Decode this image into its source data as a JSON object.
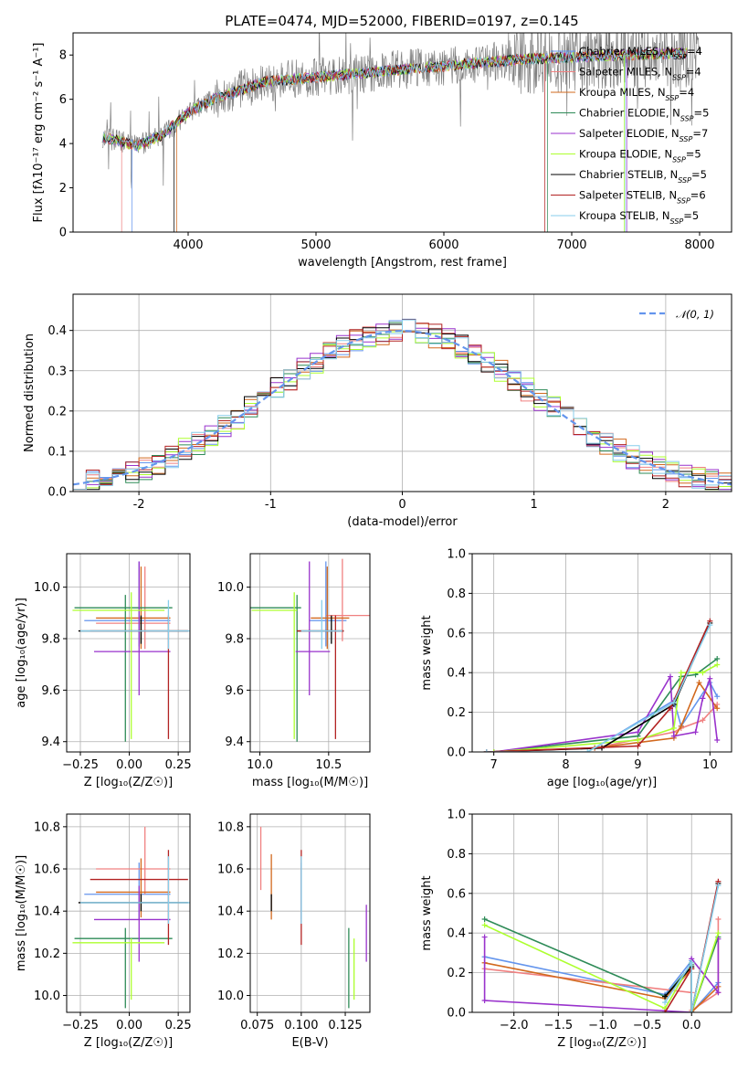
{
  "figure_title": "PLATE=0474, MJD=52000, FIBERID=0197, z=0.145",
  "models": [
    {
      "name": "Chabrier MILES",
      "n": "4",
      "color": "#6495ed"
    },
    {
      "name": "Salpeter MILES",
      "n": "4",
      "color": "#f08080"
    },
    {
      "name": "Kroupa MILES",
      "n": "4",
      "color": "#d2691e"
    },
    {
      "name": "Chabrier ELODIE",
      "n": "5",
      "color": "#2e8b57"
    },
    {
      "name": "Salpeter ELODIE",
      "n": "7",
      "color": "#9932cc"
    },
    {
      "name": "Kroupa ELODIE",
      "n": "5",
      "color": "#adff2f"
    },
    {
      "name": "Chabrier STELIB",
      "n": "5",
      "color": "#000000"
    },
    {
      "name": "Salpeter STELIB",
      "n": "6",
      "color": "#b22222"
    },
    {
      "name": "Kroupa STELIB",
      "n": "5",
      "color": "#87ceeb"
    }
  ],
  "chart_data": [
    {
      "id": "spectrum",
      "type": "line",
      "xlabel": "wavelength [Angstrom, rest frame]",
      "ylabel": "Flux [fλ10⁻¹⁷ erg cm⁻² s⁻¹ A⁻¹]",
      "xlim": [
        3100,
        8250
      ],
      "ylim": [
        0,
        9
      ],
      "xticks": [
        4000,
        5000,
        6000,
        7000,
        8000
      ],
      "yticks": [
        0,
        2,
        4,
        6,
        8
      ],
      "grid": false,
      "legend": "right",
      "data_color": "#808080",
      "data_xrange": [
        3330,
        8000
      ],
      "continuum": {
        "x": [
          3330,
          3600,
          3800,
          4000,
          4200,
          4600,
          5000,
          5400,
          5800,
          6200,
          6600,
          7000,
          7400,
          8000
        ],
        "y": [
          4.3,
          3.9,
          4.4,
          5.4,
          6.0,
          6.8,
          7.0,
          7.2,
          7.4,
          7.6,
          7.8,
          7.9,
          8.0,
          8.1
        ]
      },
      "model_xrange": [
        3330,
        7900
      ],
      "model_drop_x": [
        3560,
        3480,
        3910,
        6810,
        7430,
        7410,
        3890,
        6790,
        7420
      ]
    },
    {
      "id": "residuals",
      "type": "bar",
      "xlabel": "(data-model)/error",
      "ylabel": "Normed distribution",
      "xlim": [
        -2.5,
        2.5
      ],
      "ylim": [
        0,
        0.49
      ],
      "xticks": [
        -2,
        -1,
        0,
        1,
        2
      ],
      "yticks": [
        0.0,
        0.1,
        0.2,
        0.3,
        0.4
      ],
      "grid": true,
      "legend": "top-right",
      "legend_label": "𝒩(0, 1)",
      "bin_width": 0.1,
      "bins_from": -2.5
    },
    {
      "id": "age-vs-Z",
      "type": "scatter",
      "xlabel": "Z [log₁₀(Z/Z☉)]",
      "ylabel": "age  [log₁₀(age/yr)]",
      "xlim": [
        -0.32,
        0.31
      ],
      "ylim": [
        9.36,
        10.13
      ],
      "xticks": [
        -0.25,
        0.0,
        0.25
      ],
      "xticklabels": [
        "−0.25",
        "0.00",
        "0.25"
      ],
      "yticks": [
        9.4,
        9.6,
        9.8,
        10.0
      ],
      "grid": true,
      "points": [
        {
          "x": 0.05,
          "xerr": [
            0.28,
            0.16
          ],
          "y": 9.87,
          "yerr": [
            0.1,
            0.23
          ]
        },
        {
          "x": 0.08,
          "xerr": [
            0.25,
            0.13
          ],
          "y": 9.86,
          "yerr": [
            0.1,
            0.22
          ]
        },
        {
          "x": 0.06,
          "xerr": [
            0.23,
            0.15
          ],
          "y": 9.88,
          "yerr": [
            0.12,
            0.2
          ]
        },
        {
          "x": -0.02,
          "xerr": [
            0.26,
            0.24
          ],
          "y": 9.92,
          "yerr": [
            0.52,
            0.05
          ]
        },
        {
          "x": 0.05,
          "xerr": [
            0.23,
            0.16
          ],
          "y": 9.75,
          "yerr": [
            0.17,
            0.35
          ]
        },
        {
          "x": 0.01,
          "xerr": [
            0.3,
            0.17
          ],
          "y": 9.91,
          "yerr": [
            0.5,
            0.07
          ]
        },
        {
          "x": 0.06,
          "xerr": [
            0.32,
            0.24
          ],
          "y": 9.83,
          "yerr": [
            0.05,
            0.06
          ]
        },
        {
          "x": 0.2,
          "xerr": [
            0.4,
            0.1
          ],
          "y": 9.83,
          "yerr": [
            0.42,
            0.06
          ]
        },
        {
          "x": 0.2,
          "xerr": [
            0.45,
            0.11
          ],
          "y": 9.83,
          "yerr": [
            0.07,
            0.12
          ]
        }
      ]
    },
    {
      "id": "age-vs-mass",
      "type": "scatter",
      "xlabel": "mass [log₁₀(M/M☉)]",
      "ylabel": "",
      "xlim": [
        9.93,
        10.8
      ],
      "ylim": [
        9.36,
        10.13
      ],
      "xticks": [
        10.0,
        10.5
      ],
      "xticklabels": [
        "10.0",
        "10.5"
      ],
      "yticks": [
        9.4,
        9.6,
        9.8,
        10.0
      ],
      "grid": true,
      "points": [
        {
          "x": 10.48,
          "xerr": [
            0.12,
            0.15
          ],
          "y": 9.87,
          "yerr": [
            0.1,
            0.23
          ]
        },
        {
          "x": 10.6,
          "xerr": [
            0.12,
            0.2
          ],
          "y": 9.89,
          "yerr": [
            0.1,
            0.22
          ]
        },
        {
          "x": 10.49,
          "xerr": [
            0.12,
            0.16
          ],
          "y": 9.88,
          "yerr": [
            0.12,
            0.2
          ]
        },
        {
          "x": 10.27,
          "xerr": [
            0.35,
            0.03
          ],
          "y": 9.92,
          "yerr": [
            0.52,
            0.05
          ]
        },
        {
          "x": 10.36,
          "xerr": [
            0.1,
            0.15
          ],
          "y": 9.75,
          "yerr": [
            0.17,
            0.35
          ]
        },
        {
          "x": 10.25,
          "xerr": [
            0.31,
            0.02
          ],
          "y": 9.91,
          "yerr": [
            0.5,
            0.07
          ]
        },
        {
          "x": 10.52,
          "xerr": [
            0.25,
            0.09
          ],
          "y": 9.83,
          "yerr": [
            0.05,
            0.06
          ]
        },
        {
          "x": 10.55,
          "xerr": [
            0.28,
            0.06
          ],
          "y": 9.83,
          "yerr": [
            0.42,
            0.06
          ]
        },
        {
          "x": 10.45,
          "xerr": [
            0.15,
            0.15
          ],
          "y": 9.83,
          "yerr": [
            0.07,
            0.12
          ]
        }
      ]
    },
    {
      "id": "sfh-age",
      "type": "line",
      "xlabel": "age  [log₁₀(age/yr)]",
      "ylabel": "mass weight",
      "xlim": [
        6.7,
        10.3
      ],
      "ylim": [
        0,
        1.0
      ],
      "xticks": [
        7,
        8,
        9,
        10
      ],
      "yticks": [
        0.0,
        0.2,
        0.4,
        0.6,
        0.8,
        1.0
      ],
      "grid": true,
      "series": [
        {
          "x": [
            6.9,
            8.4,
            9.5,
            9.6,
            10.0,
            10.1
          ],
          "y": [
            0.0,
            0.02,
            0.26,
            0.13,
            0.35,
            0.28
          ]
        },
        {
          "x": [
            6.9,
            8.4,
            9.5,
            9.6,
            9.9,
            10.1
          ],
          "y": [
            0.0,
            0.02,
            0.1,
            0.12,
            0.16,
            0.24
          ]
        },
        {
          "x": [
            6.9,
            8.4,
            9.5,
            9.6,
            9.85,
            10.1
          ],
          "y": [
            0.0,
            0.02,
            0.07,
            0.13,
            0.35,
            0.22
          ]
        },
        {
          "x": [
            7.0,
            9.0,
            9.6,
            9.8,
            10.1
          ],
          "y": [
            0.0,
            0.08,
            0.38,
            0.39,
            0.47
          ]
        },
        {
          "x": [
            7.0,
            9.0,
            9.45,
            9.5,
            9.8,
            9.9,
            10.0,
            10.1
          ],
          "y": [
            0.0,
            0.1,
            0.38,
            0.08,
            0.1,
            0.27,
            0.37,
            0.06
          ]
        },
        {
          "x": [
            7.0,
            9.0,
            9.5,
            9.6,
            9.9,
            10.1
          ],
          "y": [
            0.0,
            0.06,
            0.12,
            0.4,
            0.4,
            0.44
          ]
        },
        {
          "x": [
            6.9,
            8.5,
            9.5,
            10.0
          ],
          "y": [
            0.0,
            0.02,
            0.24,
            0.65
          ]
        },
        {
          "x": [
            6.9,
            9.0,
            9.45,
            10.0
          ],
          "y": [
            0.0,
            0.03,
            0.22,
            0.66
          ]
        },
        {
          "x": [
            6.9,
            8.3,
            9.5,
            10.0
          ],
          "y": [
            0.0,
            0.0,
            0.25,
            0.64
          ]
        }
      ]
    },
    {
      "id": "mass-vs-Z",
      "type": "scatter",
      "xlabel": "Z [log₁₀(Z/Z☉)]",
      "ylabel": "mass [log₁₀(M/M☉)]",
      "xlim": [
        -0.32,
        0.31
      ],
      "ylim": [
        9.92,
        10.86
      ],
      "xticks": [
        -0.25,
        0.0,
        0.25
      ],
      "xticklabels": [
        "−0.25",
        "0.00",
        "0.25"
      ],
      "yticks": [
        10.0,
        10.2,
        10.4,
        10.6,
        10.8
      ],
      "grid": true,
      "points": [
        {
          "x": 0.05,
          "xerr": [
            0.28,
            0.16
          ],
          "y": 10.48,
          "yerr": [
            0.12,
            0.15
          ]
        },
        {
          "x": 0.08,
          "xerr": [
            0.25,
            0.13
          ],
          "y": 10.6,
          "yerr": [
            0.12,
            0.2
          ]
        },
        {
          "x": 0.06,
          "xerr": [
            0.23,
            0.15
          ],
          "y": 10.49,
          "yerr": [
            0.12,
            0.16
          ]
        },
        {
          "x": -0.02,
          "xerr": [
            0.26,
            0.24
          ],
          "y": 10.27,
          "yerr": [
            0.33,
            0.05
          ]
        },
        {
          "x": 0.05,
          "xerr": [
            0.23,
            0.16
          ],
          "y": 10.36,
          "yerr": [
            0.2,
            0.16
          ]
        },
        {
          "x": 0.01,
          "xerr": [
            0.3,
            0.17
          ],
          "y": 10.25,
          "yerr": [
            0.27,
            0.02
          ]
        },
        {
          "x": 0.06,
          "xerr": [
            0.32,
            0.24
          ],
          "y": 10.44,
          "yerr": [
            0.04,
            0.04
          ]
        },
        {
          "x": 0.2,
          "xerr": [
            0.4,
            0.1
          ],
          "y": 10.55,
          "yerr": [
            0.31,
            0.14
          ]
        },
        {
          "x": 0.2,
          "xerr": [
            0.45,
            0.11
          ],
          "y": 10.44,
          "yerr": [
            0.1,
            0.22
          ]
        }
      ]
    },
    {
      "id": "mass-vs-ebv",
      "type": "scatter",
      "xlabel": "E(B-V)",
      "ylabel": "",
      "xlim": [
        0.071,
        0.139
      ],
      "ylim": [
        9.92,
        10.86
      ],
      "xticks": [
        0.075,
        0.1,
        0.125
      ],
      "xticklabels": [
        "0.075",
        "0.100",
        "0.125"
      ],
      "yticks": [
        10.0,
        10.2,
        10.4,
        10.6,
        10.8
      ],
      "grid": true,
      "points": [
        {
          "x": 0.1,
          "y": 10.48,
          "yerr": [
            0.12,
            0.15
          ]
        },
        {
          "x": 0.077,
          "y": 10.6,
          "yerr": [
            0.1,
            0.2
          ]
        },
        {
          "x": 0.083,
          "y": 10.49,
          "yerr": [
            0.13,
            0.18
          ]
        },
        {
          "x": 0.127,
          "y": 10.27,
          "yerr": [
            0.33,
            0.05
          ]
        },
        {
          "x": 0.137,
          "y": 10.36,
          "yerr": [
            0.2,
            0.07
          ]
        },
        {
          "x": 0.13,
          "y": 10.25,
          "yerr": [
            0.27,
            0.02
          ]
        },
        {
          "x": 0.083,
          "y": 10.44,
          "yerr": [
            0.04,
            0.04
          ]
        },
        {
          "x": 0.1,
          "y": 10.55,
          "yerr": [
            0.31,
            0.14
          ]
        },
        {
          "x": 0.1,
          "y": 10.44,
          "yerr": [
            0.1,
            0.22
          ]
        }
      ]
    },
    {
      "id": "sfh-Z",
      "type": "line",
      "xlabel": "Z [log₁₀(Z/Z☉)]",
      "ylabel": "mass weight",
      "xlim": [
        -2.47,
        0.45
      ],
      "ylim": [
        0,
        1.0
      ],
      "xticks": [
        -2.0,
        -1.5,
        -1.0,
        -0.5,
        0.0
      ],
      "xticklabels": [
        "−2.0",
        "−1.5",
        "−1.0",
        "−0.5",
        "0.0"
      ],
      "yticks": [
        0.0,
        0.2,
        0.4,
        0.6,
        0.8,
        1.0
      ],
      "grid": true,
      "series": [
        {
          "x": [
            -2.33,
            -0.3,
            0.0,
            0.0,
            0.3
          ],
          "y": [
            0.28,
            0.09,
            0.26,
            0.0,
            0.15
          ]
        },
        {
          "x": [
            -2.33,
            0.0,
            0.0,
            0.3,
            0.3
          ],
          "y": [
            0.22,
            0.1,
            0.01,
            0.1,
            0.47
          ]
        },
        {
          "x": [
            -2.33,
            -0.3,
            0.0,
            0.0,
            0.3
          ],
          "y": [
            0.25,
            0.07,
            0.22,
            0.0,
            0.13
          ]
        },
        {
          "x": [
            -2.33,
            -0.3,
            0.0,
            0.0,
            0.3
          ],
          "y": [
            0.47,
            0.08,
            0.24,
            0.0,
            0.38
          ]
        },
        {
          "x": [
            -2.33,
            -2.33,
            0.0,
            0.0,
            0.3,
            0.3
          ],
          "y": [
            0.38,
            0.06,
            0.0,
            0.27,
            0.1,
            0.37
          ]
        },
        {
          "x": [
            -2.33,
            -0.3,
            0.0,
            0.0,
            0.3
          ],
          "y": [
            0.44,
            0.02,
            0.25,
            0.0,
            0.4
          ]
        },
        {
          "x": [
            -0.3,
            0.0,
            0.0,
            0.3
          ],
          "y": [
            0.08,
            0.23,
            0.0,
            0.65
          ]
        },
        {
          "x": [
            -0.3,
            0.0,
            0.0,
            0.3
          ],
          "y": [
            0.0,
            0.22,
            0.0,
            0.66
          ]
        },
        {
          "x": [
            -0.3,
            0.0,
            0.0,
            0.3
          ],
          "y": [
            0.05,
            0.25,
            0.0,
            0.64
          ]
        }
      ]
    }
  ]
}
